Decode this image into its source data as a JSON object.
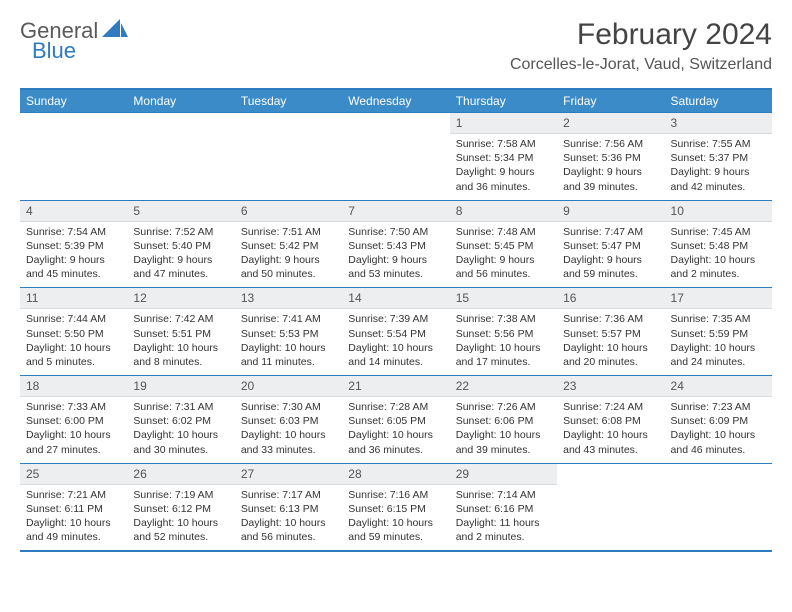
{
  "brand": {
    "part1": "General",
    "part2": "Blue"
  },
  "title": "February 2024",
  "location": "Corcelles-le-Jorat, Vaud, Switzerland",
  "colors": {
    "header_bg": "#3b8bc9",
    "accent": "#2f7bbf",
    "daynum_bg": "#eceeef",
    "text": "#333333"
  },
  "day_names": [
    "Sunday",
    "Monday",
    "Tuesday",
    "Wednesday",
    "Thursday",
    "Friday",
    "Saturday"
  ],
  "grid": {
    "leading_blanks": 4,
    "trailing_blanks": 2
  },
  "days": [
    {
      "n": "1",
      "sr": "Sunrise: 7:58 AM",
      "ss": "Sunset: 5:34 PM",
      "dl": "Daylight: 9 hours and 36 minutes."
    },
    {
      "n": "2",
      "sr": "Sunrise: 7:56 AM",
      "ss": "Sunset: 5:36 PM",
      "dl": "Daylight: 9 hours and 39 minutes."
    },
    {
      "n": "3",
      "sr": "Sunrise: 7:55 AM",
      "ss": "Sunset: 5:37 PM",
      "dl": "Daylight: 9 hours and 42 minutes."
    },
    {
      "n": "4",
      "sr": "Sunrise: 7:54 AM",
      "ss": "Sunset: 5:39 PM",
      "dl": "Daylight: 9 hours and 45 minutes."
    },
    {
      "n": "5",
      "sr": "Sunrise: 7:52 AM",
      "ss": "Sunset: 5:40 PM",
      "dl": "Daylight: 9 hours and 47 minutes."
    },
    {
      "n": "6",
      "sr": "Sunrise: 7:51 AM",
      "ss": "Sunset: 5:42 PM",
      "dl": "Daylight: 9 hours and 50 minutes."
    },
    {
      "n": "7",
      "sr": "Sunrise: 7:50 AM",
      "ss": "Sunset: 5:43 PM",
      "dl": "Daylight: 9 hours and 53 minutes."
    },
    {
      "n": "8",
      "sr": "Sunrise: 7:48 AM",
      "ss": "Sunset: 5:45 PM",
      "dl": "Daylight: 9 hours and 56 minutes."
    },
    {
      "n": "9",
      "sr": "Sunrise: 7:47 AM",
      "ss": "Sunset: 5:47 PM",
      "dl": "Daylight: 9 hours and 59 minutes."
    },
    {
      "n": "10",
      "sr": "Sunrise: 7:45 AM",
      "ss": "Sunset: 5:48 PM",
      "dl": "Daylight: 10 hours and 2 minutes."
    },
    {
      "n": "11",
      "sr": "Sunrise: 7:44 AM",
      "ss": "Sunset: 5:50 PM",
      "dl": "Daylight: 10 hours and 5 minutes."
    },
    {
      "n": "12",
      "sr": "Sunrise: 7:42 AM",
      "ss": "Sunset: 5:51 PM",
      "dl": "Daylight: 10 hours and 8 minutes."
    },
    {
      "n": "13",
      "sr": "Sunrise: 7:41 AM",
      "ss": "Sunset: 5:53 PM",
      "dl": "Daylight: 10 hours and 11 minutes."
    },
    {
      "n": "14",
      "sr": "Sunrise: 7:39 AM",
      "ss": "Sunset: 5:54 PM",
      "dl": "Daylight: 10 hours and 14 minutes."
    },
    {
      "n": "15",
      "sr": "Sunrise: 7:38 AM",
      "ss": "Sunset: 5:56 PM",
      "dl": "Daylight: 10 hours and 17 minutes."
    },
    {
      "n": "16",
      "sr": "Sunrise: 7:36 AM",
      "ss": "Sunset: 5:57 PM",
      "dl": "Daylight: 10 hours and 20 minutes."
    },
    {
      "n": "17",
      "sr": "Sunrise: 7:35 AM",
      "ss": "Sunset: 5:59 PM",
      "dl": "Daylight: 10 hours and 24 minutes."
    },
    {
      "n": "18",
      "sr": "Sunrise: 7:33 AM",
      "ss": "Sunset: 6:00 PM",
      "dl": "Daylight: 10 hours and 27 minutes."
    },
    {
      "n": "19",
      "sr": "Sunrise: 7:31 AM",
      "ss": "Sunset: 6:02 PM",
      "dl": "Daylight: 10 hours and 30 minutes."
    },
    {
      "n": "20",
      "sr": "Sunrise: 7:30 AM",
      "ss": "Sunset: 6:03 PM",
      "dl": "Daylight: 10 hours and 33 minutes."
    },
    {
      "n": "21",
      "sr": "Sunrise: 7:28 AM",
      "ss": "Sunset: 6:05 PM",
      "dl": "Daylight: 10 hours and 36 minutes."
    },
    {
      "n": "22",
      "sr": "Sunrise: 7:26 AM",
      "ss": "Sunset: 6:06 PM",
      "dl": "Daylight: 10 hours and 39 minutes."
    },
    {
      "n": "23",
      "sr": "Sunrise: 7:24 AM",
      "ss": "Sunset: 6:08 PM",
      "dl": "Daylight: 10 hours and 43 minutes."
    },
    {
      "n": "24",
      "sr": "Sunrise: 7:23 AM",
      "ss": "Sunset: 6:09 PM",
      "dl": "Daylight: 10 hours and 46 minutes."
    },
    {
      "n": "25",
      "sr": "Sunrise: 7:21 AM",
      "ss": "Sunset: 6:11 PM",
      "dl": "Daylight: 10 hours and 49 minutes."
    },
    {
      "n": "26",
      "sr": "Sunrise: 7:19 AM",
      "ss": "Sunset: 6:12 PM",
      "dl": "Daylight: 10 hours and 52 minutes."
    },
    {
      "n": "27",
      "sr": "Sunrise: 7:17 AM",
      "ss": "Sunset: 6:13 PM",
      "dl": "Daylight: 10 hours and 56 minutes."
    },
    {
      "n": "28",
      "sr": "Sunrise: 7:16 AM",
      "ss": "Sunset: 6:15 PM",
      "dl": "Daylight: 10 hours and 59 minutes."
    },
    {
      "n": "29",
      "sr": "Sunrise: 7:14 AM",
      "ss": "Sunset: 6:16 PM",
      "dl": "Daylight: 11 hours and 2 minutes."
    }
  ]
}
